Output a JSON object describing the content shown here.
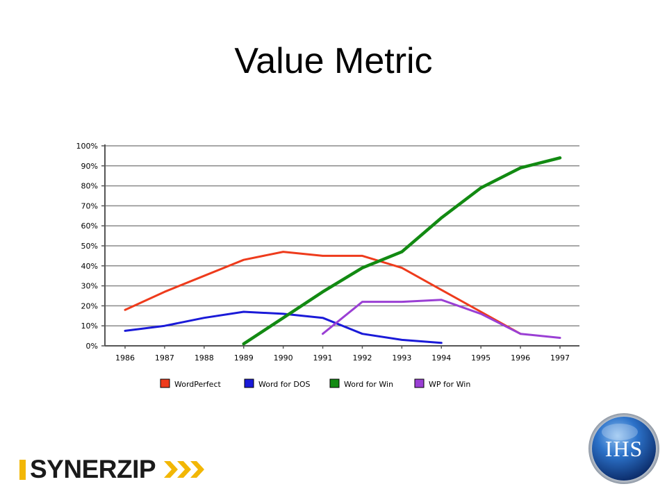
{
  "slide": {
    "title": "Value Metric"
  },
  "logos": {
    "left_brand": "SYNERZIP",
    "right_brand": "IHS"
  },
  "colors": {
    "WordPerfect": "#ee3b1c",
    "Word for DOS": "#1a1ad8",
    "Word for Win": "#128a12",
    "WP for Win": "#9a3fd4",
    "grid": "#8a8a8a",
    "synerzip_accent": "#f2b705",
    "ihs_blue": "#1d5fb8"
  },
  "chart_data": {
    "type": "line",
    "title": "",
    "xlabel": "",
    "ylabel": "",
    "categories": [
      "1986",
      "1987",
      "1988",
      "1989",
      "1990",
      "1991",
      "1992",
      "1993",
      "1994",
      "1995",
      "1996",
      "1997"
    ],
    "ylim": [
      0,
      100
    ],
    "yticks": [
      "0%",
      "10%",
      "20%",
      "30%",
      "40%",
      "50%",
      "60%",
      "70%",
      "80%",
      "90%",
      "100%"
    ],
    "grid": true,
    "legend_position": "bottom",
    "series": [
      {
        "name": "WordPerfect",
        "values": [
          18,
          27,
          35,
          43,
          47,
          45,
          45,
          39,
          28,
          17,
          6,
          null
        ]
      },
      {
        "name": "Word for DOS",
        "values": [
          7.5,
          10,
          14,
          17,
          16,
          14,
          6,
          3,
          1.5,
          null,
          null,
          null
        ]
      },
      {
        "name": "Word for Win",
        "values": [
          null,
          null,
          null,
          1,
          14,
          27,
          39,
          47,
          64,
          79,
          89,
          94
        ]
      },
      {
        "name": "WP for Win",
        "values": [
          null,
          null,
          null,
          null,
          null,
          6,
          22,
          22,
          23,
          16,
          6,
          4
        ]
      }
    ]
  }
}
